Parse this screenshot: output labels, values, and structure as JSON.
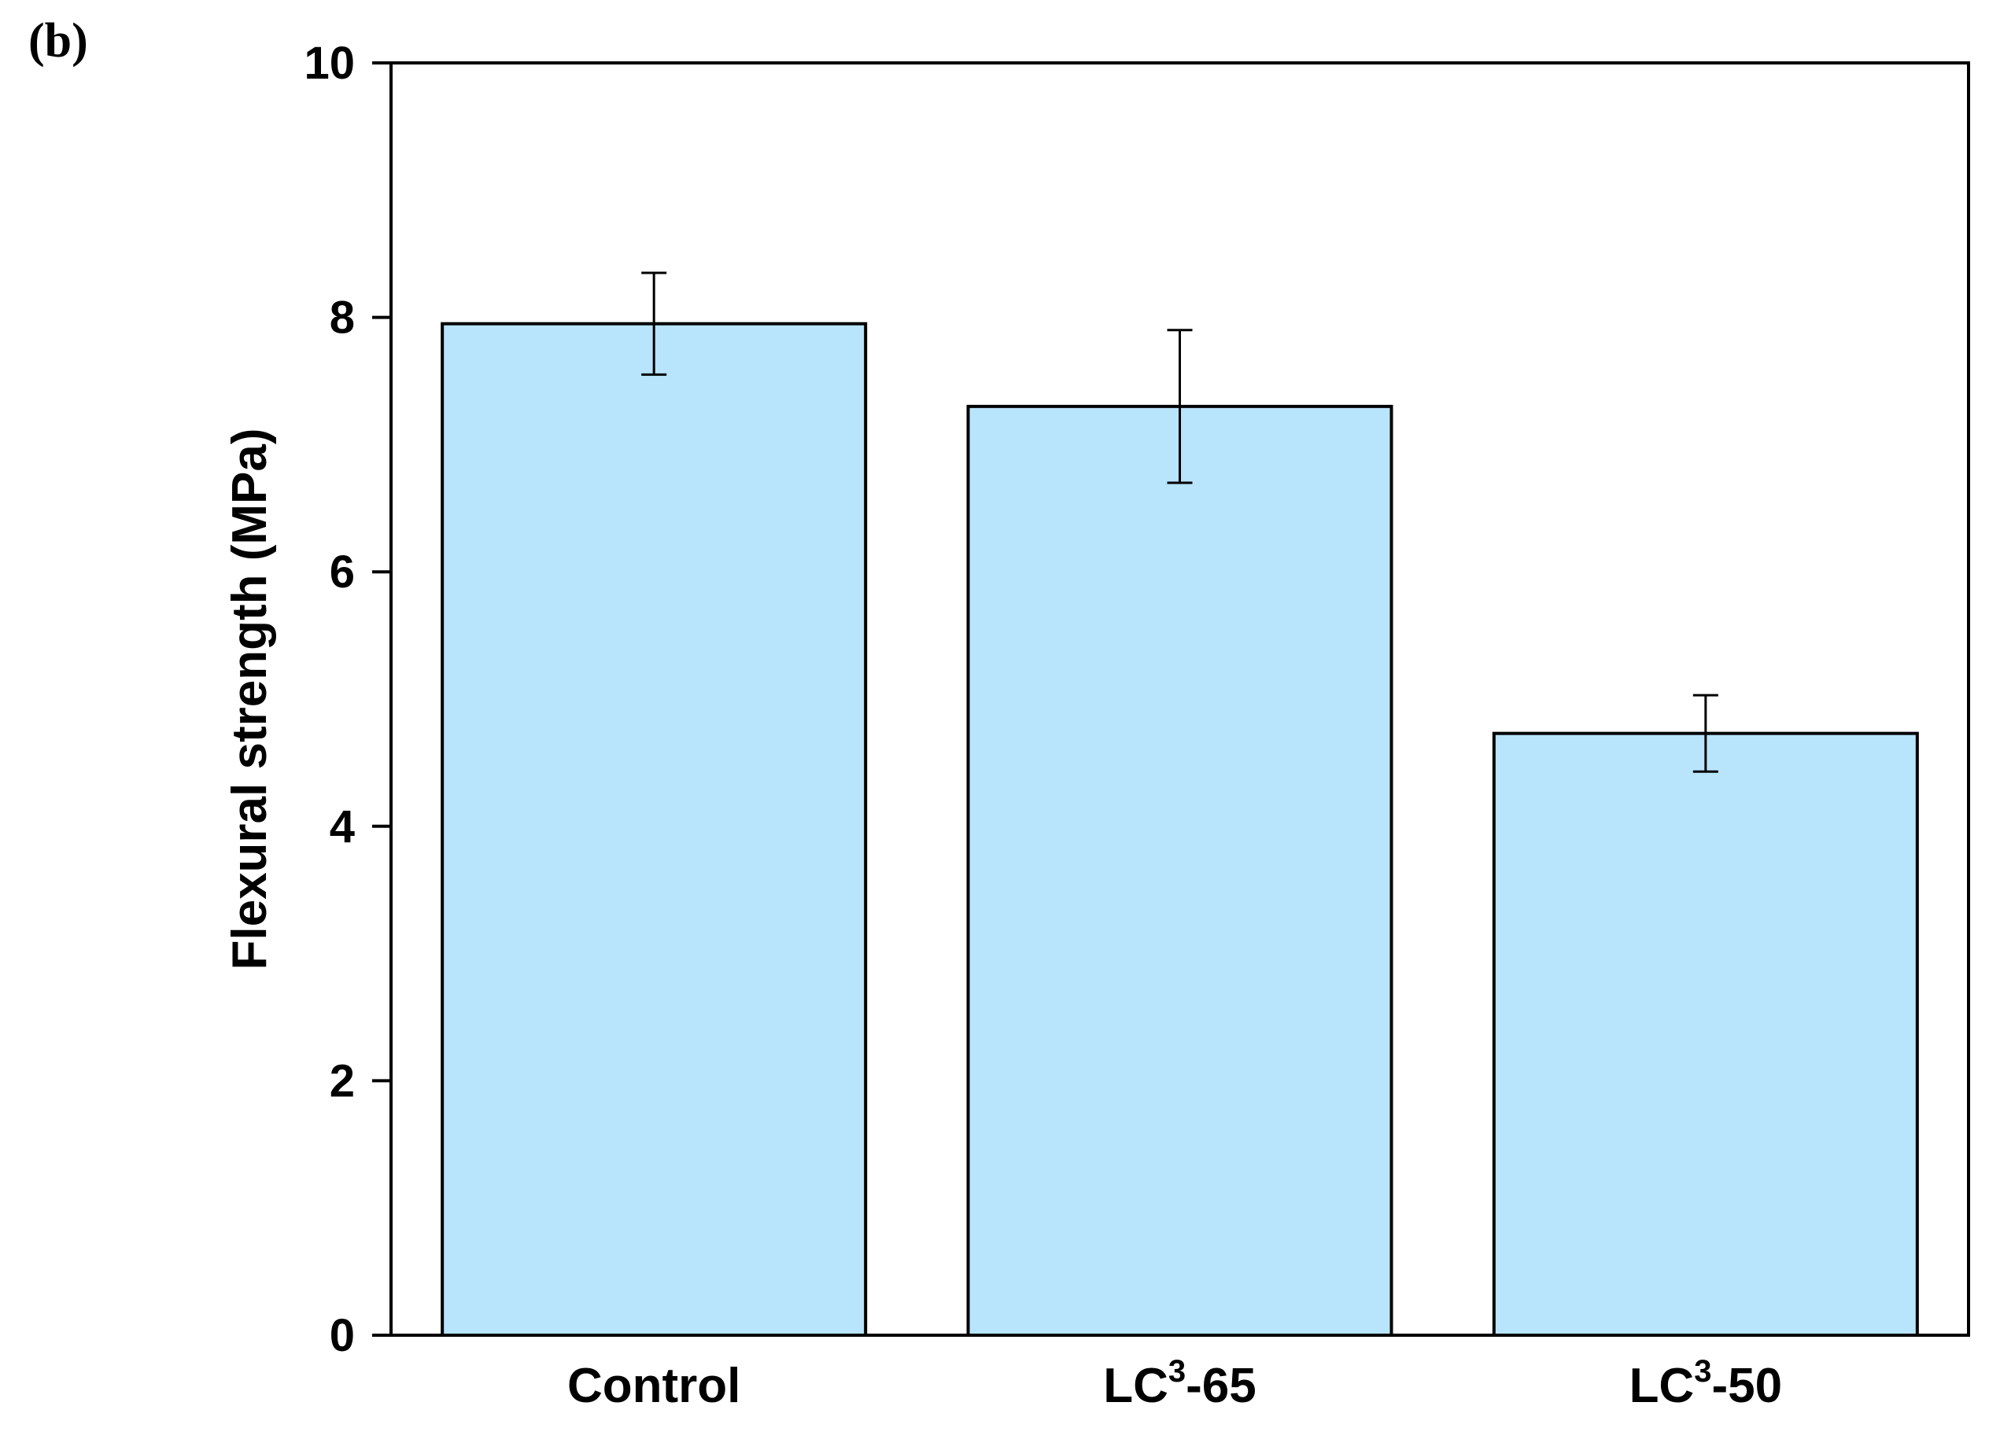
{
  "panel_label": "(b)",
  "chart_data": {
    "type": "bar",
    "title": "",
    "xlabel": "",
    "ylabel": "Flexural strength (MPa)",
    "ylim": [
      0,
      10
    ],
    "yticks": [
      0,
      2,
      4,
      6,
      8,
      10
    ],
    "grid": false,
    "categories": [
      {
        "label": "Control",
        "base": "Control",
        "sup": "",
        "suffix": ""
      },
      {
        "label": "LC3-65",
        "base": "LC",
        "sup": "3",
        "suffix": "-65"
      },
      {
        "label": "LC3-50",
        "base": "LC",
        "sup": "3",
        "suffix": "-50"
      }
    ],
    "values": [
      7.95,
      7.3,
      4.73
    ],
    "error": [
      0.4,
      0.6,
      0.3
    ],
    "bar_color": "#b8e4fc",
    "edge_color": "#000000"
  }
}
